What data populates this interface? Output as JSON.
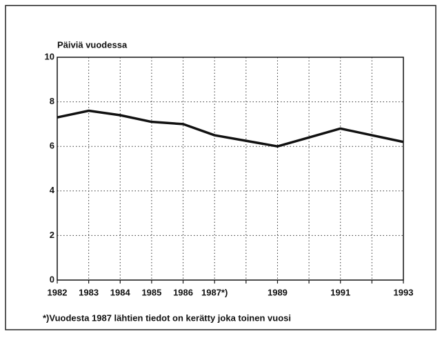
{
  "chart_data": {
    "type": "line",
    "ylabel": "Päiviä vuodessa",
    "categories": [
      "1982",
      "1983",
      "1984",
      "1985",
      "1986",
      "1987*)",
      null,
      "1989",
      null,
      "1991",
      null,
      "1993"
    ],
    "series": [
      {
        "name": "Päiviä vuodessa",
        "color": "#111111",
        "values": [
          7.3,
          7.6,
          7.4,
          7.1,
          7.0,
          6.5,
          6.25,
          6.0,
          6.4,
          6.8,
          6.5,
          6.2
        ]
      }
    ],
    "ylim": [
      0,
      10
    ],
    "yticks": [
      0,
      2,
      4,
      6,
      8,
      10
    ],
    "grid": true,
    "footnote": "*)Vuodesta 1987 lähtien tiedot on kerätty joka toinen vuosi"
  }
}
